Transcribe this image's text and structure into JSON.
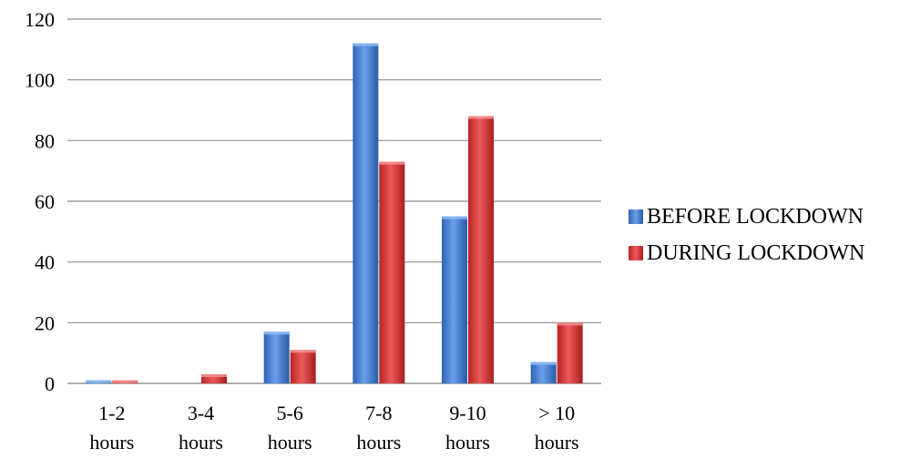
{
  "chart_data": {
    "type": "bar",
    "categories": [
      "1-2 hours",
      "3-4 hours",
      "5-6 hours",
      "7-8 hours",
      "9-10 hours",
      "> 10 hours"
    ],
    "category_lines": [
      [
        "1-2",
        "hours"
      ],
      [
        "3-4",
        "hours"
      ],
      [
        "5-6",
        "hours"
      ],
      [
        "7-8",
        "hours"
      ],
      [
        "9-10",
        "hours"
      ],
      [
        "> 10",
        "hours"
      ]
    ],
    "series": [
      {
        "name": "BEFORE LOCKDOWN",
        "values": [
          1,
          0,
          17,
          112,
          55,
          7
        ],
        "color": "#3a78d0"
      },
      {
        "name": "DURING LOCKDOWN",
        "values": [
          1,
          3,
          11,
          73,
          88,
          20
        ],
        "color": "#d42f2f"
      }
    ],
    "ylim": [
      0,
      120
    ],
    "yticks": [
      0,
      20,
      40,
      60,
      80,
      100,
      120
    ],
    "grid": true,
    "legend_position": "right",
    "title": "",
    "xlabel": "",
    "ylabel": ""
  }
}
